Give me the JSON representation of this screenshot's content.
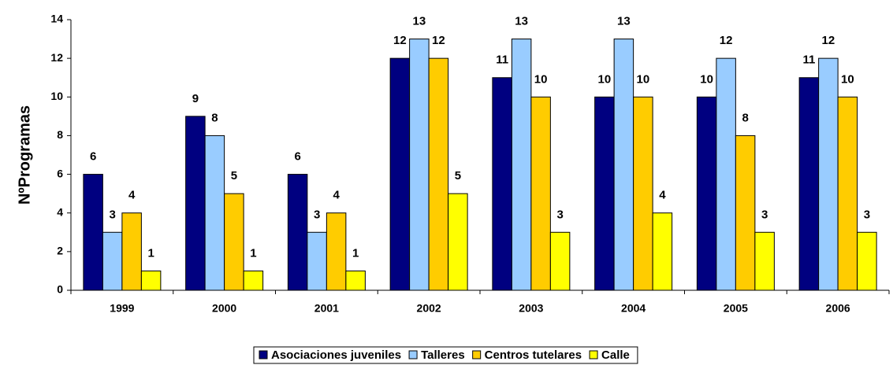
{
  "chart_data": {
    "type": "bar",
    "y_label": "NºProgramas",
    "categories": [
      "1999",
      "2000",
      "2001",
      "2002",
      "2003",
      "2004",
      "2005",
      "2006"
    ],
    "series": [
      {
        "name": "Asociaciones juveniles",
        "color": "#000080",
        "values": [
          6,
          9,
          6,
          12,
          11,
          10,
          10,
          11
        ]
      },
      {
        "name": "Talleres",
        "color": "#99ccff",
        "values": [
          3,
          8,
          3,
          13,
          13,
          13,
          12,
          12
        ]
      },
      {
        "name": "Centros tutelares",
        "color": "#ffcc00",
        "values": [
          4,
          5,
          4,
          12,
          10,
          10,
          8,
          10
        ]
      },
      {
        "name": "Calle",
        "color": "#ffff00",
        "values": [
          1,
          1,
          1,
          5,
          3,
          4,
          3,
          3
        ]
      }
    ],
    "ylim": [
      0,
      14
    ],
    "yticks": [
      0,
      2,
      4,
      6,
      8,
      10,
      12,
      14
    ],
    "grid": false,
    "legend": "bottom"
  }
}
